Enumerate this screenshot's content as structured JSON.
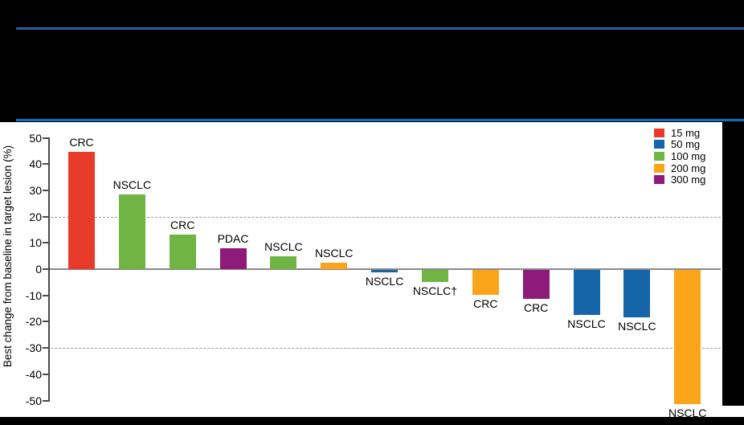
{
  "colors": {
    "background": "#000000",
    "chart_background": "#FFFFFF",
    "banner_rule_top": "#2E5FA6",
    "banner_rule_bottom": "#0C70C2"
  },
  "chart_data": {
    "type": "bar",
    "subtype": "waterfall",
    "title": "",
    "ylabel": "Best change from baseline in target lesion (%)",
    "xlabel": "",
    "ylim": [
      -50,
      50
    ],
    "yticks": [
      50,
      40,
      30,
      20,
      10,
      0,
      -10,
      -20,
      -30,
      -40,
      -50
    ],
    "reference_lines": [
      20,
      -30
    ],
    "grid": "off",
    "legend_position": "top-right",
    "legend": [
      {
        "label": "15 mg",
        "color": "#E83A28"
      },
      {
        "label": "50 mg",
        "color": "#1565A8"
      },
      {
        "label": "100 mg",
        "color": "#70B544"
      },
      {
        "label": "200 mg",
        "color": "#FAA41A"
      },
      {
        "label": "300 mg",
        "color": "#8E1B7B"
      }
    ],
    "bars": [
      {
        "label": "CRC",
        "dose": "15 mg",
        "value": 44.5
      },
      {
        "label": "NSCLC",
        "dose": "100 mg",
        "value": 28.5
      },
      {
        "label": "CRC",
        "dose": "100 mg",
        "value": 13
      },
      {
        "label": "PDAC",
        "dose": "300 mg",
        "value": 8
      },
      {
        "label": "NSCLC",
        "dose": "100 mg",
        "value": 5
      },
      {
        "label": "NSCLC",
        "dose": "200 mg",
        "value": 2.5
      },
      {
        "label": "NSCLC",
        "dose": "50 mg",
        "value": -1
      },
      {
        "label": "NSCLC†",
        "dose": "100 mg",
        "value": -4.5
      },
      {
        "label": "CRC",
        "dose": "200 mg",
        "value": -9.5
      },
      {
        "label": "CRC",
        "dose": "300 mg",
        "value": -11
      },
      {
        "label": "NSCLC",
        "dose": "50 mg",
        "value": -17
      },
      {
        "label": "NSCLC",
        "dose": "50 mg",
        "value": -18
      },
      {
        "label": "NSCLC",
        "dose": "200 mg",
        "value": -51
      }
    ]
  }
}
